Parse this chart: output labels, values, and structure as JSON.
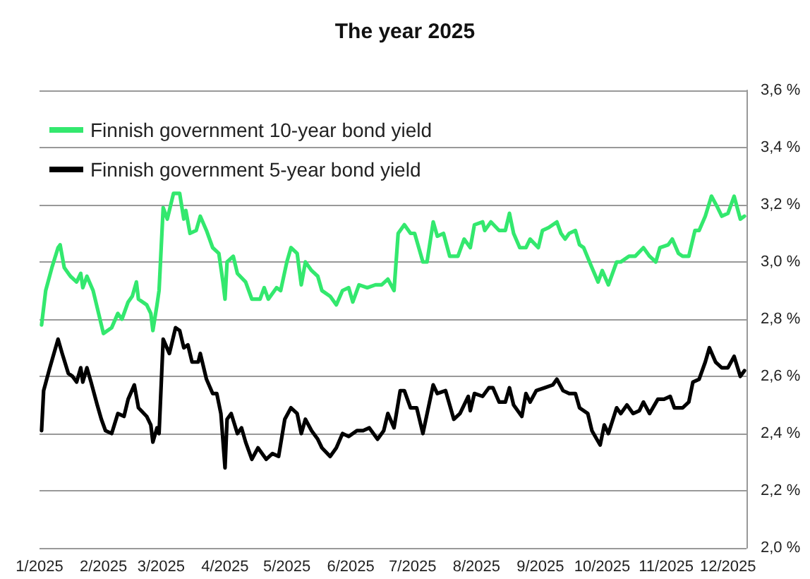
{
  "chart_data": {
    "type": "line",
    "title": "The year 2025",
    "xlim": [
      "2025-01-01",
      "2025-12-10"
    ],
    "xticks": [
      {
        "value": "2025-01-01",
        "label": "1/2025"
      },
      {
        "value": "2025-02-01",
        "label": "2/2025"
      },
      {
        "value": "2025-03-01",
        "label": "3/2025"
      },
      {
        "value": "2025-04-01",
        "label": "4/2025"
      },
      {
        "value": "2025-05-01",
        "label": "5/2025"
      },
      {
        "value": "2025-06-01",
        "label": "6/2025"
      },
      {
        "value": "2025-07-01",
        "label": "7/2025"
      },
      {
        "value": "2025-08-01",
        "label": "8/2025"
      },
      {
        "value": "2025-09-01",
        "label": "9/2025"
      },
      {
        "value": "2025-10-01",
        "label": "10/2025"
      },
      {
        "value": "2025-11-01",
        "label": "11/2025"
      },
      {
        "value": "2025-12-01",
        "label": "12/2025"
      }
    ],
    "ylim": [
      2.0,
      3.6
    ],
    "yticks": [
      {
        "value": 2.0,
        "label": "2,0 %"
      },
      {
        "value": 2.2,
        "label": "2,2 %"
      },
      {
        "value": 2.4,
        "label": "2,4 %"
      },
      {
        "value": 2.6,
        "label": "2,6 %"
      },
      {
        "value": 2.8,
        "label": "2,8 %"
      },
      {
        "value": 3.0,
        "label": "3,0 %"
      },
      {
        "value": 3.2,
        "label": "3,2 %"
      },
      {
        "value": 3.4,
        "label": "3,4 %"
      },
      {
        "value": 3.6,
        "label": "3,6 %"
      }
    ],
    "grid": "y",
    "legend": "top left",
    "marker": "none",
    "line_style": "solid",
    "series": [
      {
        "name": "Finnish government 10-year bond yield",
        "color": "#33e86e",
        "x": [
          "2025-01-02",
          "2025-01-04",
          "2025-01-07",
          "2025-01-10",
          "2025-01-11",
          "2025-01-13",
          "2025-01-15",
          "2025-01-16",
          "2025-01-19",
          "2025-01-21",
          "2025-01-22",
          "2025-01-24",
          "2025-01-27",
          "2025-01-30",
          "2025-02-01",
          "2025-02-05",
          "2025-02-08",
          "2025-02-10",
          "2025-02-13",
          "2025-02-15",
          "2025-02-17",
          "2025-02-18",
          "2025-02-22",
          "2025-02-24",
          "2025-02-25",
          "2025-02-27",
          "2025-02-28",
          "2025-03-02",
          "2025-03-04",
          "2025-03-07",
          "2025-03-10",
          "2025-03-12",
          "2025-03-13",
          "2025-03-15",
          "2025-03-18",
          "2025-03-20",
          "2025-03-23",
          "2025-03-26",
          "2025-03-29",
          "2025-03-31",
          "2025-04-01",
          "2025-04-02",
          "2025-04-05",
          "2025-04-07",
          "2025-04-11",
          "2025-04-14",
          "2025-04-18",
          "2025-04-20",
          "2025-04-22",
          "2025-04-26",
          "2025-04-28",
          "2025-05-01",
          "2025-05-03",
          "2025-05-06",
          "2025-05-08",
          "2025-05-10",
          "2025-05-13",
          "2025-05-16",
          "2025-05-18",
          "2025-05-22",
          "2025-05-25",
          "2025-05-28",
          "2025-05-31",
          "2025-06-02",
          "2025-06-05",
          "2025-06-09",
          "2025-06-13",
          "2025-06-16",
          "2025-06-19",
          "2025-06-22",
          "2025-06-24",
          "2025-06-27",
          "2025-06-30",
          "2025-07-02",
          "2025-07-06",
          "2025-07-08",
          "2025-07-11",
          "2025-07-13",
          "2025-07-16",
          "2025-07-19",
          "2025-07-23",
          "2025-07-26",
          "2025-07-29",
          "2025-07-31",
          "2025-08-04",
          "2025-08-05",
          "2025-08-08",
          "2025-08-12",
          "2025-08-15",
          "2025-08-17",
          "2025-08-19",
          "2025-08-22",
          "2025-08-25",
          "2025-08-27",
          "2025-08-31",
          "2025-09-02",
          "2025-09-05",
          "2025-09-09",
          "2025-09-11",
          "2025-09-13",
          "2025-09-15",
          "2025-09-18",
          "2025-09-20",
          "2025-09-22",
          "2025-09-26",
          "2025-09-29",
          "2025-10-01",
          "2025-10-04",
          "2025-10-08",
          "2025-10-10",
          "2025-10-14",
          "2025-10-17",
          "2025-10-21",
          "2025-10-24",
          "2025-10-27",
          "2025-10-29",
          "2025-11-02",
          "2025-11-04",
          "2025-11-07",
          "2025-11-09",
          "2025-11-12",
          "2025-11-15",
          "2025-11-17",
          "2025-11-20",
          "2025-11-23",
          "2025-11-26",
          "2025-11-28",
          "2025-12-01",
          "2025-12-04",
          "2025-12-07",
          "2025-12-09"
        ],
        "values": [
          2.78,
          2.9,
          2.98,
          3.05,
          3.06,
          2.98,
          2.96,
          2.95,
          2.93,
          2.96,
          2.91,
          2.95,
          2.9,
          2.81,
          2.75,
          2.77,
          2.82,
          2.8,
          2.86,
          2.88,
          2.93,
          2.87,
          2.85,
          2.82,
          2.76,
          2.85,
          2.9,
          3.19,
          3.15,
          3.24,
          3.24,
          3.15,
          3.18,
          3.1,
          3.11,
          3.16,
          3.11,
          3.05,
          3.03,
          2.93,
          2.87,
          3.0,
          3.02,
          2.96,
          2.93,
          2.87,
          2.87,
          2.91,
          2.87,
          2.91,
          2.9,
          3.0,
          3.05,
          3.03,
          2.92,
          3.0,
          2.97,
          2.95,
          2.9,
          2.88,
          2.85,
          2.9,
          2.91,
          2.86,
          2.92,
          2.91,
          2.92,
          2.92,
          2.94,
          2.9,
          3.1,
          3.13,
          3.1,
          3.1,
          3.0,
          3.0,
          3.14,
          3.09,
          3.1,
          3.02,
          3.02,
          3.08,
          3.05,
          3.13,
          3.14,
          3.11,
          3.14,
          3.11,
          3.11,
          3.17,
          3.1,
          3.05,
          3.05,
          3.08,
          3.05,
          3.11,
          3.12,
          3.14,
          3.1,
          3.08,
          3.1,
          3.11,
          3.06,
          3.05,
          2.98,
          2.93,
          2.97,
          2.92,
          3.0,
          3.0,
          3.02,
          3.02,
          3.05,
          3.02,
          3.0,
          3.05,
          3.06,
          3.08,
          3.03,
          3.02,
          3.02,
          3.11,
          3.11,
          3.16,
          3.23,
          3.19,
          3.16,
          3.17,
          3.23,
          3.15,
          3.16
        ]
      },
      {
        "name": "Finnish government 5-year bond yield",
        "color": "#000000",
        "x": [
          "2025-01-02",
          "2025-01-03",
          "2025-01-06",
          "2025-01-10",
          "2025-01-12",
          "2025-01-15",
          "2025-01-17",
          "2025-01-19",
          "2025-01-21",
          "2025-01-22",
          "2025-01-24",
          "2025-01-26",
          "2025-01-29",
          "2025-01-31",
          "2025-02-02",
          "2025-02-05",
          "2025-02-08",
          "2025-02-11",
          "2025-02-13",
          "2025-02-16",
          "2025-02-18",
          "2025-02-22",
          "2025-02-24",
          "2025-02-25",
          "2025-02-27",
          "2025-02-28",
          "2025-03-02",
          "2025-03-05",
          "2025-03-08",
          "2025-03-10",
          "2025-03-12",
          "2025-03-14",
          "2025-03-16",
          "2025-03-19",
          "2025-03-20",
          "2025-03-23",
          "2025-03-26",
          "2025-03-28",
          "2025-03-30",
          "2025-04-01",
          "2025-04-02",
          "2025-04-04",
          "2025-04-07",
          "2025-04-09",
          "2025-04-11",
          "2025-04-14",
          "2025-04-17",
          "2025-04-21",
          "2025-04-24",
          "2025-04-27",
          "2025-04-30",
          "2025-05-03",
          "2025-05-06",
          "2025-05-08",
          "2025-05-10",
          "2025-05-13",
          "2025-05-16",
          "2025-05-18",
          "2025-05-22",
          "2025-05-25",
          "2025-05-28",
          "2025-05-31",
          "2025-06-04",
          "2025-06-07",
          "2025-06-10",
          "2025-06-14",
          "2025-06-17",
          "2025-06-19",
          "2025-06-22",
          "2025-06-25",
          "2025-06-27",
          "2025-06-30",
          "2025-07-03",
          "2025-07-06",
          "2025-07-11",
          "2025-07-13",
          "2025-07-17",
          "2025-07-21",
          "2025-07-24",
          "2025-07-28",
          "2025-07-29",
          "2025-07-31",
          "2025-08-04",
          "2025-08-07",
          "2025-08-09",
          "2025-08-12",
          "2025-08-15",
          "2025-08-17",
          "2025-08-19",
          "2025-08-23",
          "2025-08-25",
          "2025-08-27",
          "2025-08-30",
          "2025-09-03",
          "2025-09-07",
          "2025-09-09",
          "2025-09-12",
          "2025-09-15",
          "2025-09-18",
          "2025-09-20",
          "2025-09-24",
          "2025-09-26",
          "2025-09-30",
          "2025-10-02",
          "2025-10-04",
          "2025-10-08",
          "2025-10-10",
          "2025-10-13",
          "2025-10-16",
          "2025-10-19",
          "2025-10-21",
          "2025-10-24",
          "2025-10-28",
          "2025-10-31",
          "2025-11-03",
          "2025-11-05",
          "2025-11-09",
          "2025-11-12",
          "2025-11-14",
          "2025-11-17",
          "2025-11-20",
          "2025-11-22",
          "2025-11-25",
          "2025-11-28",
          "2025-12-01",
          "2025-12-04",
          "2025-12-07",
          "2025-12-09"
        ],
        "values": [
          2.41,
          2.55,
          2.63,
          2.73,
          2.68,
          2.61,
          2.6,
          2.58,
          2.63,
          2.58,
          2.63,
          2.58,
          2.5,
          2.45,
          2.41,
          2.4,
          2.47,
          2.46,
          2.52,
          2.57,
          2.49,
          2.46,
          2.43,
          2.37,
          2.42,
          2.4,
          2.73,
          2.68,
          2.77,
          2.76,
          2.7,
          2.71,
          2.65,
          2.65,
          2.68,
          2.59,
          2.54,
          2.54,
          2.47,
          2.28,
          2.45,
          2.47,
          2.4,
          2.42,
          2.37,
          2.31,
          2.35,
          2.31,
          2.33,
          2.32,
          2.45,
          2.49,
          2.47,
          2.4,
          2.45,
          2.41,
          2.38,
          2.35,
          2.32,
          2.35,
          2.4,
          2.39,
          2.41,
          2.41,
          2.42,
          2.38,
          2.41,
          2.47,
          2.42,
          2.55,
          2.55,
          2.49,
          2.49,
          2.4,
          2.57,
          2.54,
          2.55,
          2.45,
          2.47,
          2.53,
          2.48,
          2.54,
          2.53,
          2.56,
          2.56,
          2.51,
          2.51,
          2.56,
          2.5,
          2.46,
          2.54,
          2.51,
          2.55,
          2.56,
          2.57,
          2.59,
          2.55,
          2.54,
          2.54,
          2.49,
          2.47,
          2.41,
          2.36,
          2.43,
          2.4,
          2.49,
          2.47,
          2.5,
          2.47,
          2.48,
          2.51,
          2.47,
          2.52,
          2.52,
          2.53,
          2.49,
          2.49,
          2.51,
          2.58,
          2.59,
          2.65,
          2.7,
          2.65,
          2.63,
          2.63,
          2.67,
          2.6,
          2.62
        ]
      }
    ]
  }
}
